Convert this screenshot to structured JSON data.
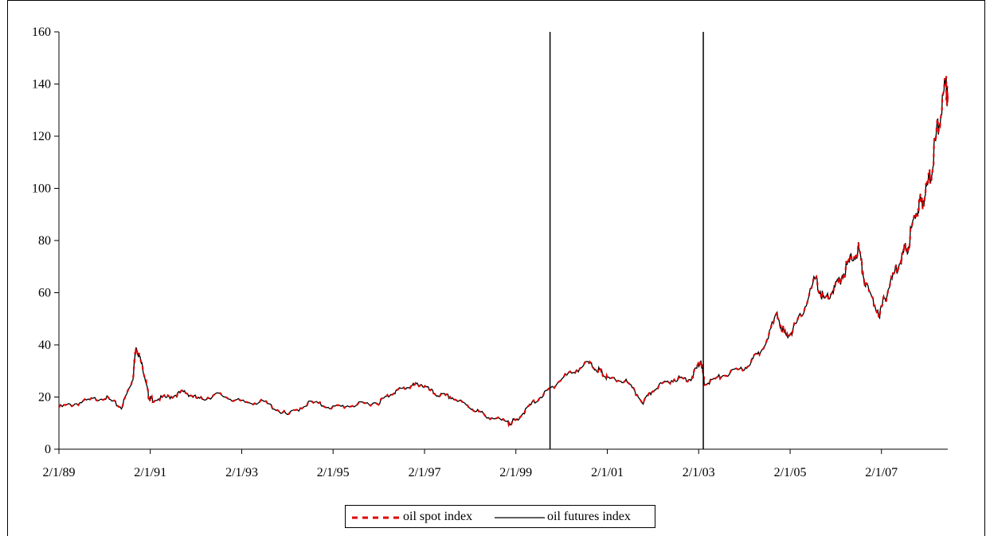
{
  "chart_data": {
    "type": "line",
    "title": "",
    "xlabel": "",
    "ylabel": "",
    "ylim": [
      0,
      160
    ],
    "yticks": [
      0,
      20,
      40,
      60,
      80,
      100,
      120,
      140,
      160
    ],
    "xlim": [
      "1989-02-01",
      "2008-07-15"
    ],
    "xticks": [
      {
        "date": "1989-02-01",
        "label": "2/1/89"
      },
      {
        "date": "1991-02-01",
        "label": "2/1/91"
      },
      {
        "date": "1993-02-01",
        "label": "2/1/93"
      },
      {
        "date": "1995-02-01",
        "label": "2/1/95"
      },
      {
        "date": "1997-02-01",
        "label": "2/1/97"
      },
      {
        "date": "1999-02-01",
        "label": "2/1/99"
      },
      {
        "date": "2001-02-01",
        "label": "2/1/01"
      },
      {
        "date": "2003-02-01",
        "label": "2/1/03"
      },
      {
        "date": "2005-02-01",
        "label": "2/1/05"
      },
      {
        "date": "2007-02-01",
        "label": "2/1/07"
      }
    ],
    "grid": false,
    "legend_position": "bottom",
    "vertical_lines": [
      "1999-11-01",
      "2003-03-10"
    ],
    "series": [
      {
        "name": "oil spot index",
        "color": "#e00000",
        "style": "dashed",
        "x": [
          "1989-02-01",
          "1989-08-01",
          "1990-02-01",
          "1990-06-15",
          "1990-09-15",
          "1990-10-10",
          "1990-12-15",
          "1991-01-20",
          "1991-02-20",
          "1991-07-01",
          "1991-11-01",
          "1992-03-01",
          "1992-08-01",
          "1993-02-01",
          "1993-08-01",
          "1994-02-01",
          "1994-08-01",
          "1995-02-01",
          "1995-08-01",
          "1996-02-01",
          "1996-06-01",
          "1996-10-01",
          "1997-01-01",
          "1997-05-01",
          "1997-09-01",
          "1998-02-01",
          "1998-06-01",
          "1998-12-01",
          "1999-02-01",
          "1999-06-01",
          "1999-11-01",
          "2000-03-01",
          "2000-09-01",
          "2000-12-01",
          "2001-02-01",
          "2001-07-01",
          "2001-11-15",
          "2002-03-01",
          "2002-08-01",
          "2002-12-01",
          "2003-02-20",
          "2003-03-20",
          "2003-08-01",
          "2004-02-01",
          "2004-06-01",
          "2004-10-20",
          "2005-01-01",
          "2005-04-01",
          "2005-08-20",
          "2005-11-01",
          "2006-02-01",
          "2006-05-01",
          "2006-08-01",
          "2006-10-01",
          "2007-01-18",
          "2007-04-01",
          "2007-07-01",
          "2007-09-01",
          "2007-11-10",
          "2008-01-01",
          "2008-03-01",
          "2008-05-01",
          "2008-07-03",
          "2008-07-15"
        ],
        "y": [
          16,
          18,
          20,
          16,
          27,
          40,
          29,
          20,
          19,
          20,
          22,
          19,
          21,
          18,
          18,
          13,
          18,
          16,
          17,
          18,
          22,
          24,
          25,
          21,
          20,
          16,
          13,
          10,
          11,
          17,
          23,
          28,
          33,
          30,
          27,
          26,
          18,
          24,
          27,
          27,
          34,
          25,
          28,
          31,
          37,
          51,
          43,
          48,
          65,
          57,
          62,
          70,
          77,
          62,
          52,
          62,
          73,
          78,
          92,
          96,
          105,
          125,
          140,
          133
        ]
      },
      {
        "name": "oil futures index",
        "color": "#000000",
        "style": "solid",
        "x": [
          "1989-02-01",
          "1989-08-01",
          "1990-02-01",
          "1990-06-15",
          "1990-09-15",
          "1990-10-10",
          "1990-12-15",
          "1991-01-20",
          "1991-02-20",
          "1991-07-01",
          "1991-11-01",
          "1992-03-01",
          "1992-08-01",
          "1993-02-01",
          "1993-08-01",
          "1994-02-01",
          "1994-08-01",
          "1995-02-01",
          "1995-08-01",
          "1996-02-01",
          "1996-06-01",
          "1996-10-01",
          "1997-01-01",
          "1997-05-01",
          "1997-09-01",
          "1998-02-01",
          "1998-06-01",
          "1998-12-01",
          "1999-02-01",
          "1999-06-01",
          "1999-11-01",
          "2000-03-01",
          "2000-09-01",
          "2000-12-01",
          "2001-02-01",
          "2001-07-01",
          "2001-11-15",
          "2002-03-01",
          "2002-08-01",
          "2002-12-01",
          "2003-02-20",
          "2003-03-20",
          "2003-08-01",
          "2004-02-01",
          "2004-06-01",
          "2004-10-20",
          "2005-01-01",
          "2005-04-01",
          "2005-08-20",
          "2005-11-01",
          "2006-02-01",
          "2006-05-01",
          "2006-08-01",
          "2006-10-01",
          "2007-01-18",
          "2007-04-01",
          "2007-07-01",
          "2007-09-01",
          "2007-11-10",
          "2008-01-01",
          "2008-03-01",
          "2008-05-01",
          "2008-07-03",
          "2008-07-15"
        ],
        "y": [
          16,
          18,
          20,
          16,
          27,
          40,
          29,
          20,
          19,
          20,
          22,
          19,
          21,
          18,
          18,
          13,
          18,
          16,
          17,
          18,
          22,
          24,
          25,
          21,
          20,
          16,
          13,
          10,
          11,
          17,
          23,
          28,
          33,
          30,
          27,
          26,
          18,
          24,
          27,
          27,
          34,
          25,
          28,
          31,
          37,
          51,
          43,
          48,
          65,
          57,
          62,
          70,
          77,
          62,
          52,
          62,
          73,
          78,
          92,
          96,
          105,
          125,
          140,
          133
        ]
      }
    ]
  },
  "legend": {
    "spot_label": "oil spot index",
    "futures_label": "oil futures index"
  }
}
